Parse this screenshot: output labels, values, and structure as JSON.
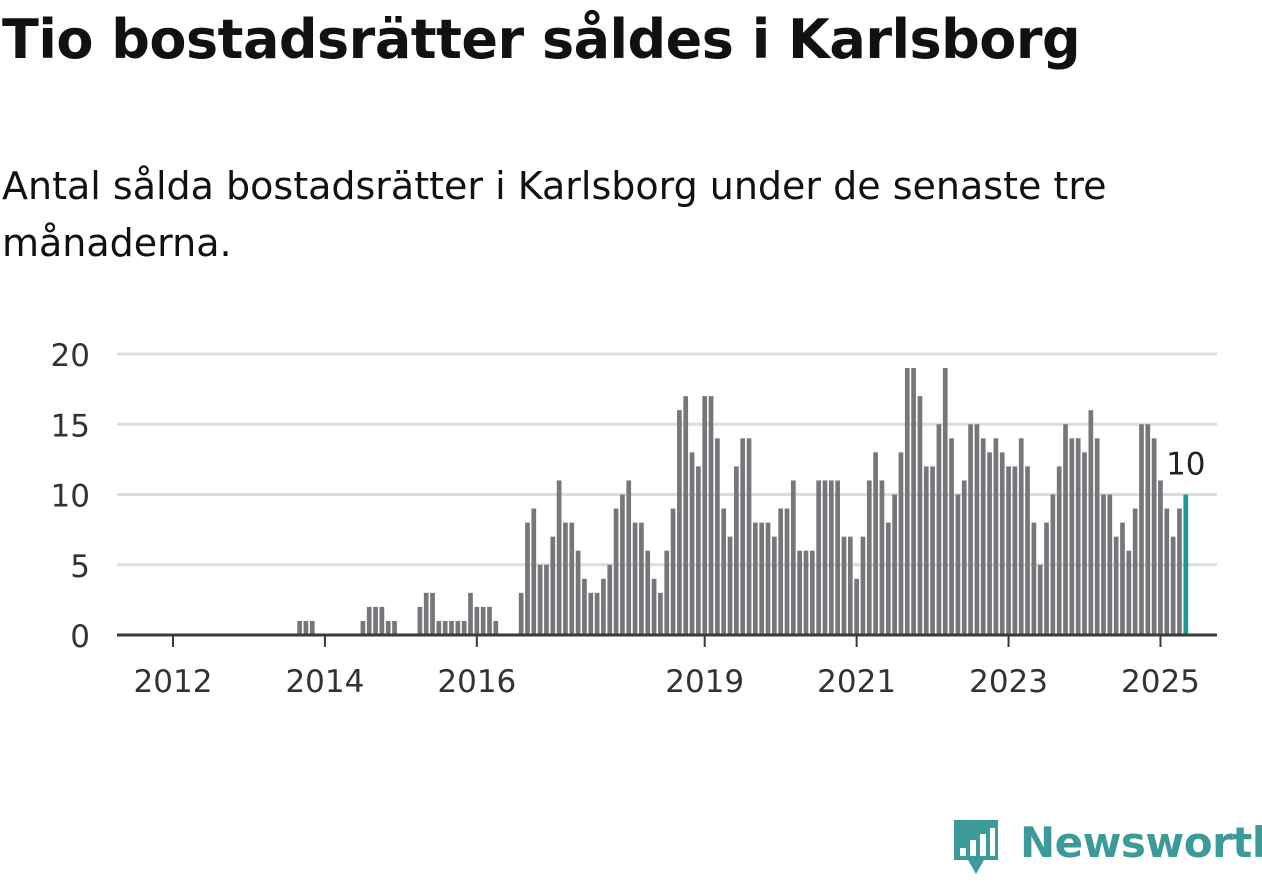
{
  "header": {
    "title": "Tio bostadsrätter såldes i Karlsborg",
    "subtitle": "Antal sålda bostadsrätter i Karlsborg under de senaste tre månaderna."
  },
  "chart_data": {
    "type": "bar",
    "title": "Tio bostadsrätter såldes i Karlsborg",
    "subtitle": "Antal sålda bostadsrätter i Karlsborg under de senaste tre månaderna.",
    "xlabel": "",
    "ylabel": "",
    "ylim": [
      0,
      20
    ],
    "yticks": [
      "0",
      "5",
      "10",
      "15",
      "20"
    ],
    "xticks": [
      "2012",
      "2014",
      "2016",
      "2019",
      "2021",
      "2023",
      "2025"
    ],
    "grid": true,
    "legend": "none",
    "start_month": "2011-05",
    "end_month": "2025-01",
    "values": [
      0,
      0,
      0,
      0,
      0,
      0,
      0,
      0,
      0,
      0,
      0,
      0,
      0,
      0,
      0,
      0,
      0,
      0,
      0,
      0,
      0,
      0,
      0,
      0,
      0,
      0,
      0,
      0,
      1,
      1,
      1,
      0,
      0,
      0,
      0,
      0,
      0,
      0,
      1,
      2,
      2,
      2,
      1,
      1,
      0,
      0,
      0,
      2,
      3,
      3,
      1,
      1,
      1,
      1,
      1,
      3,
      2,
      2,
      2,
      1,
      0,
      0,
      0,
      3,
      8,
      9,
      5,
      5,
      7,
      11,
      8,
      8,
      6,
      4,
      3,
      3,
      4,
      5,
      9,
      10,
      11,
      8,
      8,
      6,
      4,
      3,
      6,
      9,
      16,
      17,
      13,
      12,
      17,
      17,
      14,
      9,
      7,
      12,
      14,
      14,
      8,
      8,
      8,
      7,
      9,
      9,
      11,
      6,
      6,
      6,
      11,
      11,
      11,
      11,
      7,
      7,
      4,
      7,
      11,
      13,
      11,
      8,
      10,
      13,
      19,
      19,
      17,
      12,
      12,
      15,
      19,
      14,
      10,
      11,
      15,
      15,
      14,
      13,
      14,
      13,
      12,
      12,
      14,
      12,
      8,
      5,
      8,
      10,
      12,
      15,
      14,
      14,
      13,
      16,
      14,
      10,
      10,
      7,
      8,
      6,
      9,
      15,
      15,
      14,
      11,
      9,
      7,
      9,
      10
    ],
    "highlight": {
      "label": "10",
      "value": 10,
      "color": "#1a9a94"
    },
    "bar_color": "#77767b",
    "grid_color": "#dcdcdc",
    "axis_color": "#3a3a3a"
  },
  "branding": {
    "name": "Newsworthy",
    "color": "#3c9a98"
  }
}
